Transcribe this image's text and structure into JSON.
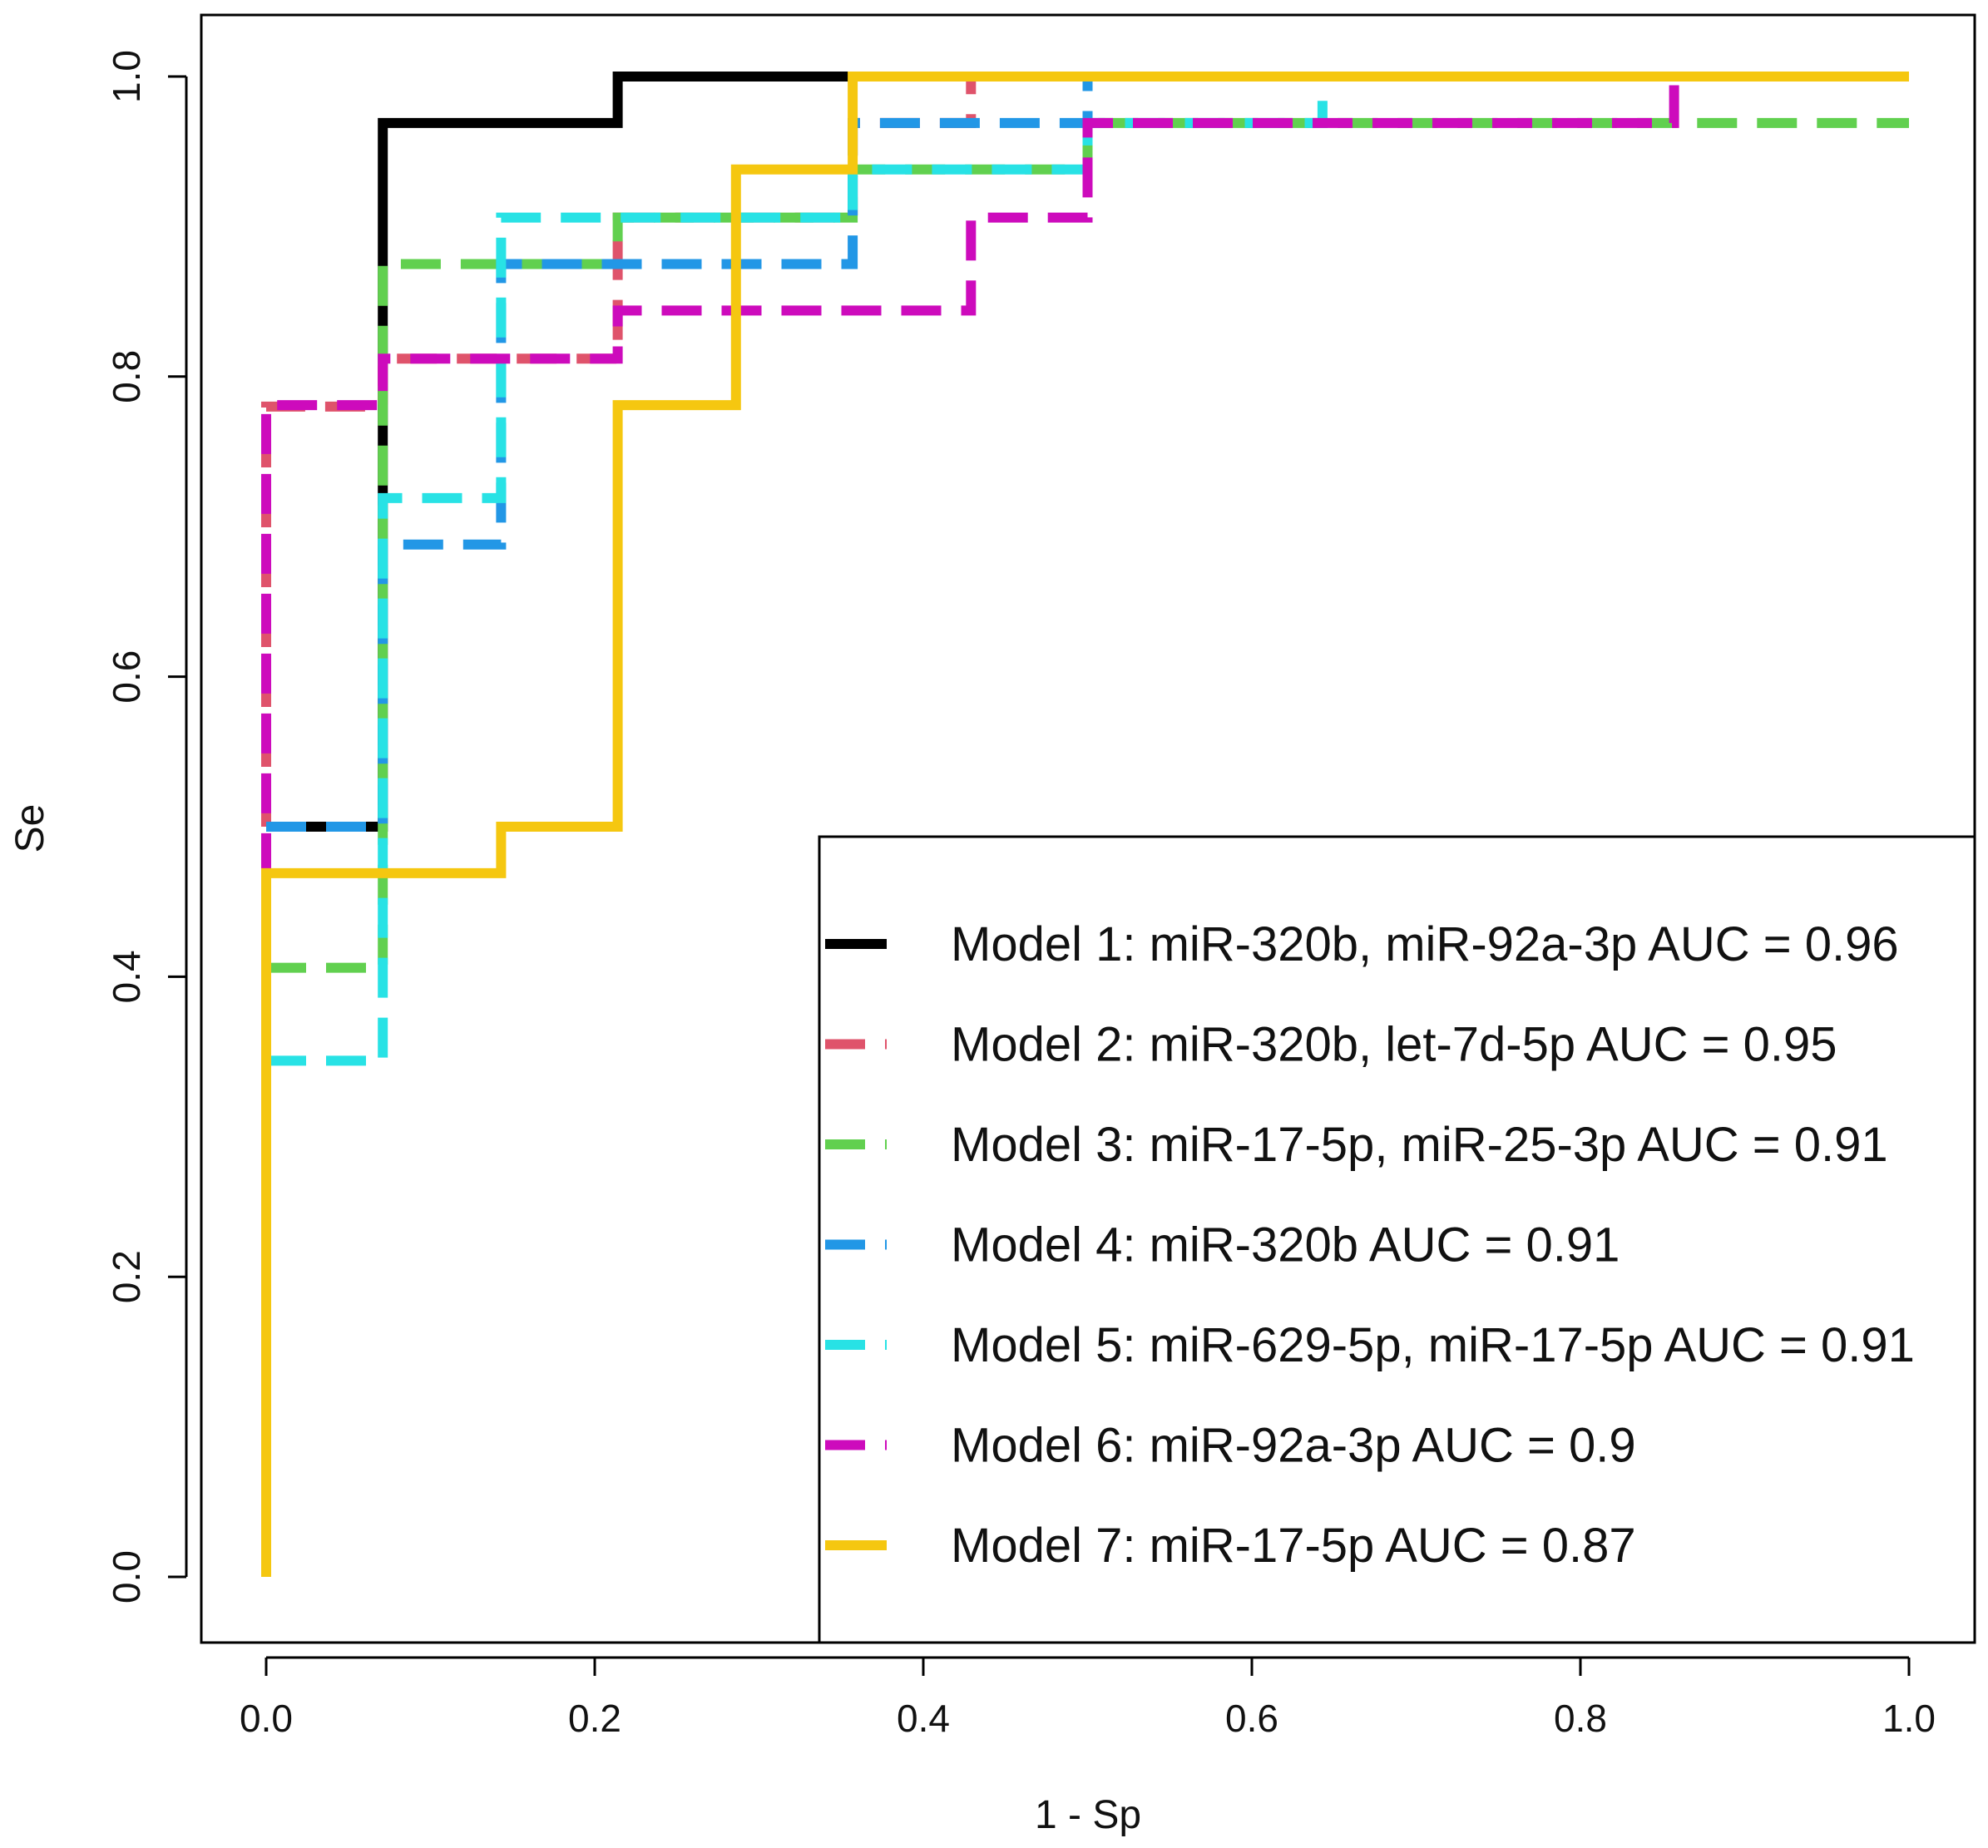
{
  "chart_data": {
    "type": "line",
    "title": "",
    "xlabel": "1 - Sp",
    "ylabel": "Se",
    "xlim": [
      0.0,
      1.0
    ],
    "ylim": [
      0.0,
      1.0
    ],
    "x_ticks": [
      "0.0",
      "0.2",
      "0.4",
      "0.6",
      "0.8",
      "1.0"
    ],
    "y_ticks": [
      "0.0",
      "0.2",
      "0.4",
      "0.6",
      "0.8",
      "1.0"
    ],
    "grid": false,
    "legend_position": "bottom-right",
    "series": [
      {
        "name": "Model 1: miR-320b, miR-92a-3p AUC =  0.96",
        "color": "#000000",
        "dash": "solid",
        "points": [
          [
            0,
            0.5
          ],
          [
            0.071,
            0.5
          ],
          [
            0.071,
            0.969
          ],
          [
            0.214,
            0.969
          ],
          [
            0.214,
            1.0
          ],
          [
            0.357,
            1.0
          ]
        ]
      },
      {
        "name": "Model 2: miR-320b, let-7d-5p AUC =  0.95",
        "color": "#DF536B",
        "dash": "dashed",
        "points": [
          [
            0,
            0.5
          ],
          [
            0,
            0.78
          ],
          [
            0.071,
            0.78
          ],
          [
            0.071,
            0.812
          ],
          [
            0.214,
            0.812
          ],
          [
            0.214,
            0.906
          ],
          [
            0.357,
            0.906
          ],
          [
            0.357,
            0.969
          ],
          [
            0.429,
            0.969
          ],
          [
            0.429,
            1.0
          ],
          [
            1.0,
            1.0
          ]
        ]
      },
      {
        "name": "Model 3: miR-17-5p, miR-25-3p AUC =  0.91",
        "color": "#61D04F",
        "dash": "dashed",
        "points": [
          [
            0,
            0.406
          ],
          [
            0.071,
            0.406
          ],
          [
            0.071,
            0.875
          ],
          [
            0.214,
            0.875
          ],
          [
            0.214,
            0.906
          ],
          [
            0.357,
            0.906
          ],
          [
            0.357,
            0.938
          ],
          [
            0.5,
            0.938
          ],
          [
            0.5,
            0.969
          ],
          [
            1.0,
            0.969
          ]
        ]
      },
      {
        "name": "Model 4: miR-320b AUC =  0.91",
        "color": "#2297E6",
        "dash": "dashed",
        "points": [
          [
            0,
            0.5
          ],
          [
            0.071,
            0.5
          ],
          [
            0.071,
            0.688
          ],
          [
            0.143,
            0.688
          ],
          [
            0.143,
            0.875
          ],
          [
            0.357,
            0.875
          ],
          [
            0.357,
            0.969
          ],
          [
            0.5,
            0.969
          ],
          [
            0.5,
            1.0
          ],
          [
            1.0,
            1.0
          ]
        ]
      },
      {
        "name": "Model 5: miR-629-5p, miR-17-5p AUC =  0.91",
        "color": "#28E2E5",
        "dash": "dashed",
        "points": [
          [
            0,
            0.344
          ],
          [
            0.071,
            0.344
          ],
          [
            0.071,
            0.719
          ],
          [
            0.143,
            0.719
          ],
          [
            0.143,
            0.906
          ],
          [
            0.357,
            0.906
          ],
          [
            0.357,
            0.938
          ],
          [
            0.5,
            0.938
          ],
          [
            0.5,
            0.969
          ],
          [
            0.643,
            0.969
          ],
          [
            0.643,
            1.0
          ],
          [
            1.0,
            1.0
          ]
        ]
      },
      {
        "name": "Model 6: miR-92a-3p AUC =  0.9",
        "color": "#CD0BBC",
        "dash": "dashed",
        "points": [
          [
            0,
            0.469
          ],
          [
            0,
            0.781
          ],
          [
            0.071,
            0.781
          ],
          [
            0.071,
            0.812
          ],
          [
            0.214,
            0.812
          ],
          [
            0.214,
            0.844
          ],
          [
            0.429,
            0.844
          ],
          [
            0.429,
            0.906
          ],
          [
            0.5,
            0.906
          ],
          [
            0.5,
            0.969
          ],
          [
            0.857,
            0.969
          ],
          [
            0.857,
            1.0
          ],
          [
            1.0,
            1.0
          ]
        ]
      },
      {
        "name": "Model 7: miR-17-5p AUC =  0.87",
        "color": "#F5C710",
        "dash": "solid",
        "points": [
          [
            0,
            0
          ],
          [
            0,
            0.469
          ],
          [
            0.143,
            0.469
          ],
          [
            0.143,
            0.5
          ],
          [
            0.214,
            0.5
          ],
          [
            0.214,
            0.781
          ],
          [
            0.286,
            0.781
          ],
          [
            0.286,
            0.938
          ],
          [
            0.357,
            0.938
          ],
          [
            0.357,
            1.0
          ],
          [
            1.0,
            1.0
          ]
        ]
      }
    ]
  }
}
